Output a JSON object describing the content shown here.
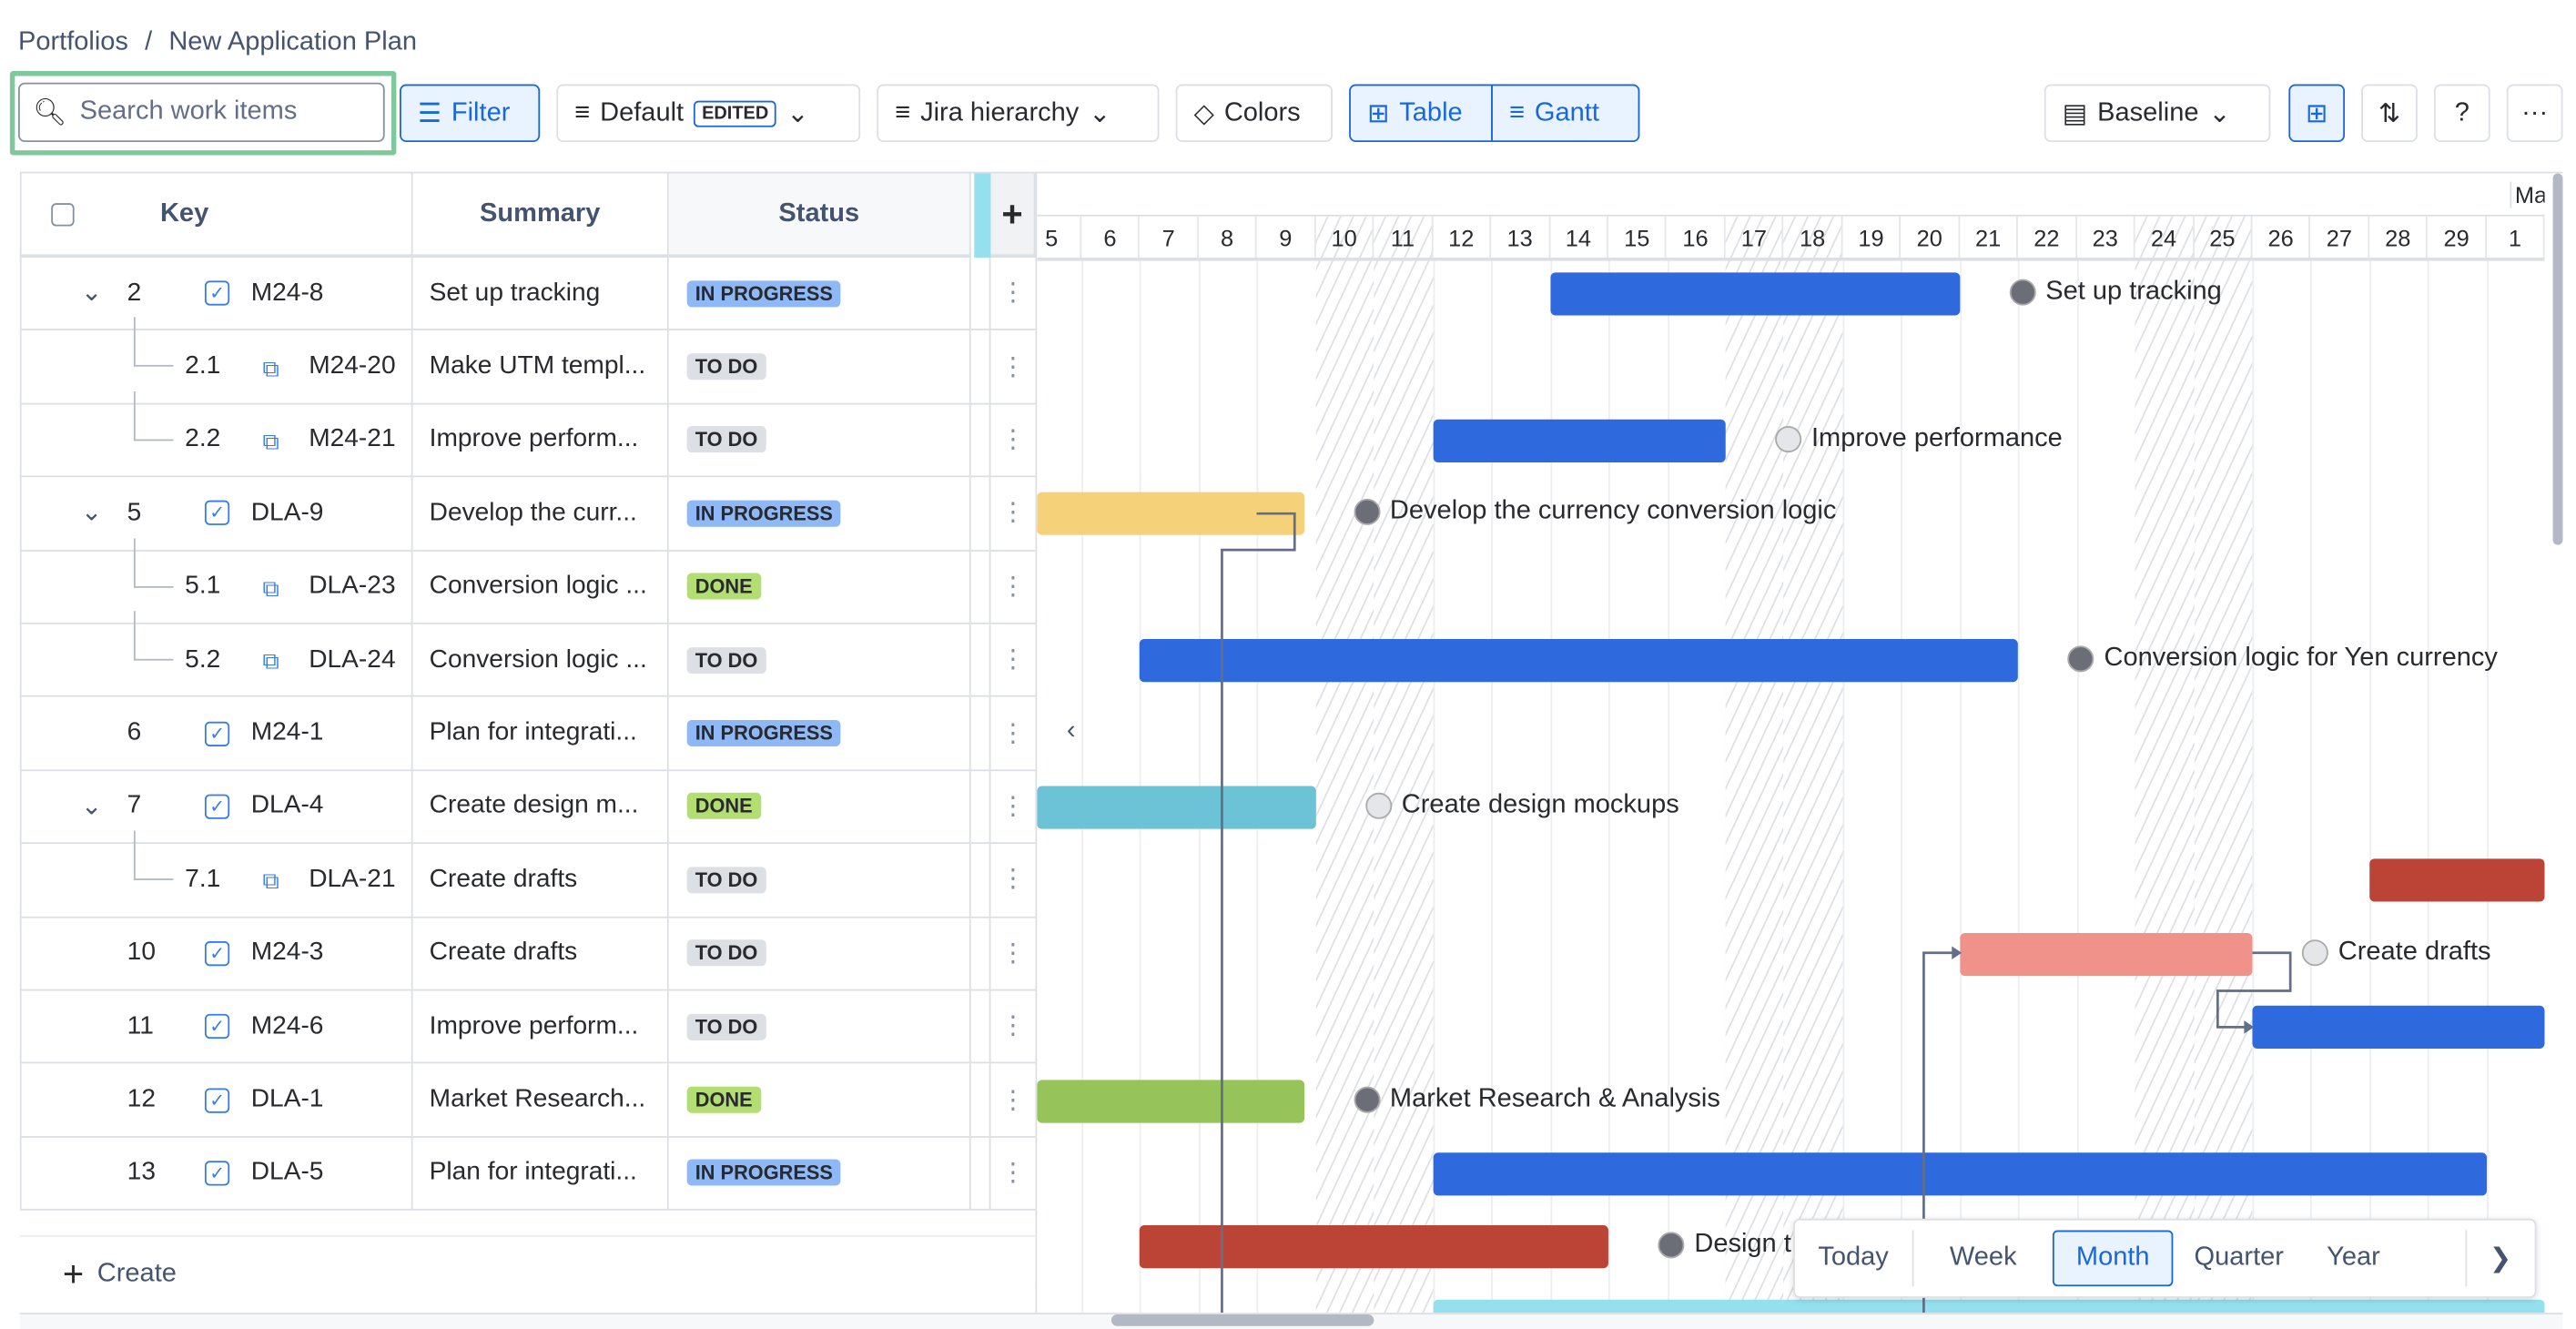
{
  "breadcrumb": {
    "root": "Portfolios",
    "separator": "/",
    "current": "New Application Plan"
  },
  "toolbar": {
    "search_placeholder": "Search work items",
    "filter": "Filter",
    "view": "Default",
    "view_badge": "EDITED",
    "hierarchy": "Jira hierarchy",
    "colors": "Colors",
    "table": "Table",
    "gantt": "Gantt",
    "baseline": "Baseline",
    "help": "?",
    "more": "···"
  },
  "table": {
    "headers": {
      "key": "Key",
      "summary": "Summary",
      "status": "Status",
      "add": "+"
    },
    "rows": [
      {
        "num": "2",
        "key": "M24-8",
        "summary": "Set up tracking",
        "status": "IN PROGRESS",
        "level": 0,
        "expand": true
      },
      {
        "num": "2.1",
        "key": "M24-20",
        "summary": "Make UTM templ...",
        "status": "TO DO",
        "level": 1
      },
      {
        "num": "2.2",
        "key": "M24-21",
        "summary": "Improve perform...",
        "status": "TO DO",
        "level": 1
      },
      {
        "num": "5",
        "key": "DLA-9",
        "summary": "Develop the curr...",
        "status": "IN PROGRESS",
        "level": 0,
        "expand": true
      },
      {
        "num": "5.1",
        "key": "DLA-23",
        "summary": "Conversion logic ...",
        "status": "DONE",
        "level": 1
      },
      {
        "num": "5.2",
        "key": "DLA-24",
        "summary": "Conversion logic ...",
        "status": "TO DO",
        "level": 1
      },
      {
        "num": "6",
        "key": "M24-1",
        "summary": "Plan for integrati...",
        "status": "IN PROGRESS",
        "level": 0
      },
      {
        "num": "7",
        "key": "DLA-4",
        "summary": "Create design m...",
        "status": "DONE",
        "level": 0,
        "expand": true
      },
      {
        "num": "7.1",
        "key": "DLA-21",
        "summary": "Create drafts",
        "status": "TO DO",
        "level": 1
      },
      {
        "num": "10",
        "key": "M24-3",
        "summary": "Create drafts",
        "status": "TO DO",
        "level": 0
      },
      {
        "num": "11",
        "key": "M24-6",
        "summary": "Improve perform...",
        "status": "TO DO",
        "level": 0
      },
      {
        "num": "12",
        "key": "DLA-1",
        "summary": "Market Research...",
        "status": "DONE",
        "level": 0
      },
      {
        "num": "13",
        "key": "DLA-5",
        "summary": "Plan for integrati...",
        "status": "IN PROGRESS",
        "level": 0
      }
    ],
    "create": "Create"
  },
  "gantt": {
    "month_label": "Mar",
    "days": [
      "5",
      "6",
      "7",
      "8",
      "9",
      "10",
      "11",
      "12",
      "13",
      "14",
      "15",
      "16",
      "17",
      "18",
      "19",
      "20",
      "21",
      "22",
      "23",
      "24",
      "25",
      "26",
      "27",
      "28",
      "29",
      "1"
    ],
    "weekends": [
      "10",
      "11",
      "17",
      "18",
      "24",
      "25"
    ],
    "bars": [
      {
        "row": 0,
        "start": 14,
        "end": 21,
        "color": "#2f69de",
        "label": "Set up tracking",
        "avatar": true
      },
      {
        "row": 2,
        "start": 12,
        "end": 17,
        "color": "#2f69de",
        "label": "Improve performance",
        "avatar": false
      },
      {
        "row": 3,
        "start": 5,
        "end": 9.8,
        "color": "#f5d27a",
        "label": "Develop the currency conversion logic",
        "avatar": true
      },
      {
        "row": 5,
        "start": 7,
        "end": 22,
        "color": "#2f69de",
        "label": "Conversion logic for Yen currency",
        "avatar": true
      },
      {
        "row": 7,
        "start": 5,
        "end": 10,
        "color": "#6cc3d5",
        "label": "Create design mockups",
        "avatar": false
      },
      {
        "row": 8,
        "start": 28,
        "end": 31,
        "color": "#bc4437",
        "label": ""
      },
      {
        "row": 9,
        "start": 21,
        "end": 26,
        "color": "#f0928a",
        "label": "Create drafts",
        "avatar": false
      },
      {
        "row": 10,
        "start": 26,
        "end": 31,
        "color": "#2f69de",
        "label": ""
      },
      {
        "row": 11,
        "start": 5,
        "end": 9.8,
        "color": "#96c45a",
        "label": "Market Research & Analysis",
        "avatar": true
      },
      {
        "row": 12,
        "start": 12,
        "end": 30,
        "color": "#2f69de",
        "label": ""
      },
      {
        "row": 13,
        "start": 7,
        "end": 15,
        "color": "#bc4437",
        "label": "Design t",
        "avatar": true
      },
      {
        "row": 14,
        "start": 12,
        "end": 31,
        "color": "#94e0ef",
        "label": ""
      }
    ],
    "collapse_icon": "chevron-left-icon",
    "time_controls": {
      "today": "Today",
      "options": [
        "Week",
        "Month",
        "Quarter",
        "Year"
      ],
      "selected": "Month"
    }
  }
}
